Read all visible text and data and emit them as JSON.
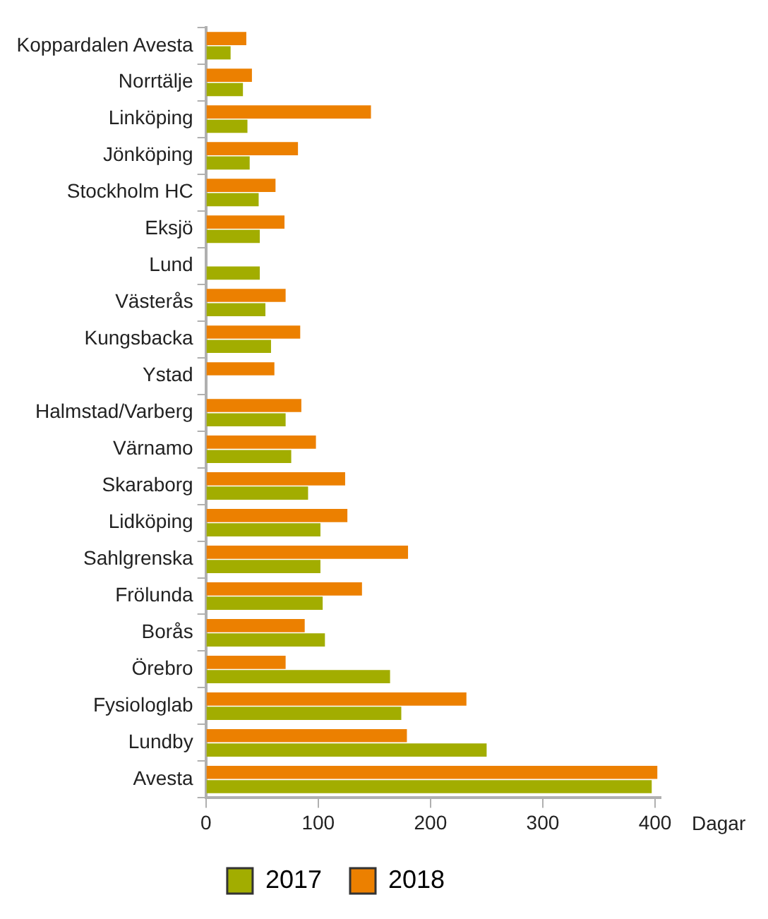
{
  "chart_data": {
    "type": "bar",
    "orientation": "horizontal",
    "xlabel": "Dagar",
    "categories": [
      "Koppardalen Avesta",
      "Norrtälje",
      "Linköping",
      "Jönköping",
      "Stockholm HC",
      "Eksjö",
      "Lund",
      "Västerås",
      "Kungsbacka",
      "Ystad",
      "Halmstad/Varberg",
      "Värnamo",
      "Skaraborg",
      "Lidköping",
      "Sahlgrenska",
      "Frölunda",
      "Borås",
      "Örebro",
      "Fysiologlab",
      "Lundby",
      "Avesta"
    ],
    "series": [
      {
        "name": "2017",
        "color": "#a2ad00",
        "values": [
          22,
          33,
          37,
          39,
          47,
          48,
          48,
          53,
          58,
          null,
          71,
          76,
          91,
          102,
          102,
          104,
          106,
          164,
          174,
          250,
          397
        ]
      },
      {
        "name": "2018",
        "color": "#ec8000",
        "values": [
          36,
          41,
          147,
          82,
          62,
          70,
          null,
          71,
          84,
          61,
          85,
          98,
          124,
          126,
          180,
          139,
          88,
          71,
          232,
          179,
          402
        ]
      }
    ],
    "xlim": [
      0,
      405
    ],
    "xticks": [
      0,
      100,
      200,
      300,
      400
    ],
    "grid": false,
    "legend": "bottom"
  }
}
